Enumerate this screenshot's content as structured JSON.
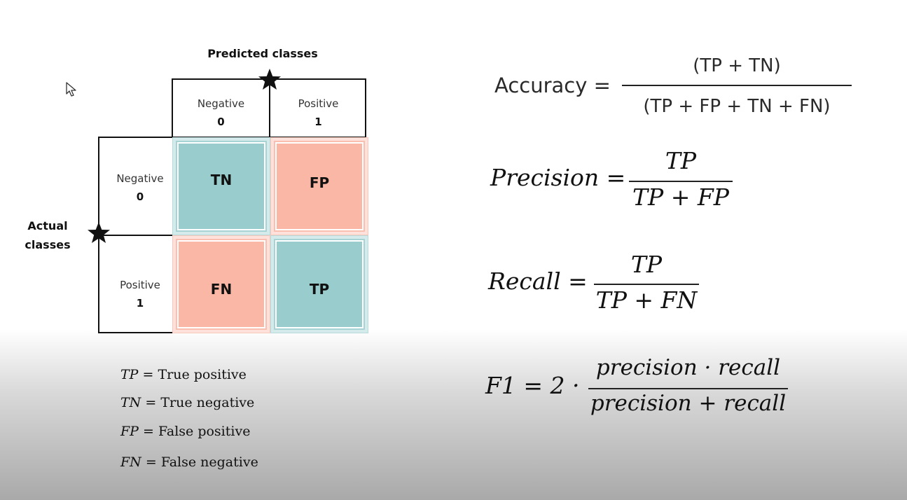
{
  "diagram": {
    "predicted_title": "Predicted classes",
    "actual_title": [
      "Actual",
      "classes"
    ],
    "columns": [
      {
        "label": "Negative",
        "value": "0"
      },
      {
        "label": "Positive",
        "value": "1"
      }
    ],
    "rows": [
      {
        "label": "Negative",
        "value": "0"
      },
      {
        "label": "Positive",
        "value": "1"
      }
    ],
    "cells": [
      "TN",
      "FP",
      "FN",
      "TP"
    ]
  },
  "legend": [
    {
      "abbr": "TP",
      "eq": "=",
      "text": "True positive"
    },
    {
      "abbr": "TN",
      "eq": "=",
      "text": "True negative"
    },
    {
      "abbr": "FP",
      "eq": "=",
      "text": "False positive"
    },
    {
      "abbr": "FN",
      "eq": "=",
      "text": "False negative"
    }
  ],
  "formulas": {
    "accuracy": {
      "lhs": "Accuracy =",
      "numerator": "(TP + TN)",
      "denominator": "(TP + FP + TN + FN)"
    },
    "precision": {
      "lhs": "Precision =",
      "numerator": "TP",
      "denominator": "TP + FP"
    },
    "recall": {
      "lhs": "Recall =",
      "numerator": "TP",
      "denominator": "TP + FN"
    },
    "f1": {
      "lhs": "F1 = 2 ·",
      "numerator": "precision · recall",
      "denominator": "precision + recall"
    }
  },
  "colors": {
    "teal": "#98cccd",
    "salmon": "#fbb7a5"
  },
  "icons": [
    "mouse-cursor-icon",
    "star-icon"
  ]
}
